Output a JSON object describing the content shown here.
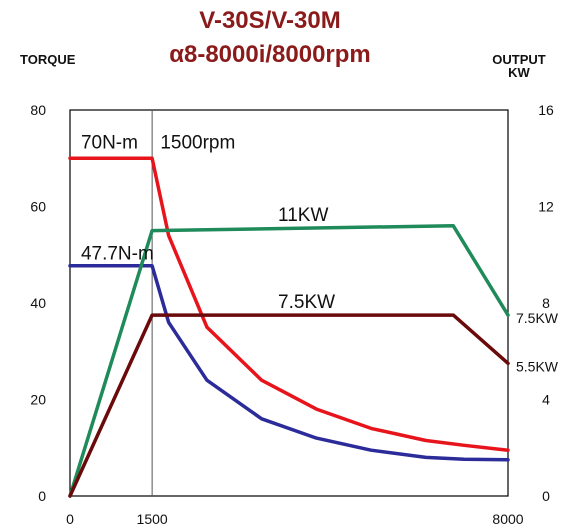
{
  "chart_data": {
    "type": "line",
    "title": "V-30S/V-30M",
    "subtitle": "α8-8000i/8000rpm",
    "ylabel_left": "TORQUE",
    "ylabel_right": "OUTPUT",
    "ylabel_right_unit": "KW",
    "xlim": [
      0,
      8000
    ],
    "ylim_left": [
      0,
      80
    ],
    "ylim_right": [
      0,
      16
    ],
    "x_ticks": [
      "0",
      "1500",
      "8000"
    ],
    "y_ticks_left": [
      "0",
      "20",
      "40",
      "60",
      "80"
    ],
    "y_ticks_right": [
      "0",
      "4",
      "8",
      "12",
      "16"
    ],
    "grid": false,
    "series": [
      {
        "axis": "left",
        "color": "#e8141b",
        "points": [
          [
            0,
            70
          ],
          [
            1500,
            70
          ],
          [
            1800,
            54
          ],
          [
            2500,
            35
          ],
          [
            3500,
            24
          ],
          [
            4500,
            18
          ],
          [
            5500,
            14
          ],
          [
            6500,
            11.5
          ],
          [
            7200,
            10.5
          ],
          [
            8000,
            9.5
          ]
        ]
      },
      {
        "axis": "left",
        "color": "#2b2b9a",
        "points": [
          [
            0,
            47.7
          ],
          [
            1500,
            47.7
          ],
          [
            1800,
            36
          ],
          [
            2500,
            24
          ],
          [
            3500,
            16
          ],
          [
            4500,
            12
          ],
          [
            5500,
            9.5
          ],
          [
            6500,
            8
          ],
          [
            7200,
            7.6
          ],
          [
            8000,
            7.5
          ]
        ]
      },
      {
        "axis": "right",
        "color": "#1f8a5a",
        "points": [
          [
            0,
            0
          ],
          [
            1500,
            11
          ],
          [
            7000,
            11.2
          ],
          [
            8000,
            7.5
          ]
        ]
      },
      {
        "axis": "right",
        "color": "#6b0a0a",
        "points": [
          [
            0,
            0
          ],
          [
            1500,
            7.5
          ],
          [
            7000,
            7.5
          ],
          [
            8000,
            5.5
          ]
        ]
      }
    ],
    "annotations": [
      {
        "text": "70N-m",
        "x": 200,
        "y": 72
      },
      {
        "text": "1500rpm",
        "x": 1650,
        "y": 72
      },
      {
        "text": "47.7N-m",
        "x": 200,
        "y": 49
      },
      {
        "text": "11KW",
        "x": 3800,
        "y": 57
      },
      {
        "text": "7.5KW",
        "x": 3800,
        "y": 39
      }
    ],
    "right_labels": [
      {
        "text": "7.5KW",
        "y": 7.5
      },
      {
        "text": "5.5KW",
        "y": 5.5
      }
    ],
    "vertical_marker": 1500
  }
}
